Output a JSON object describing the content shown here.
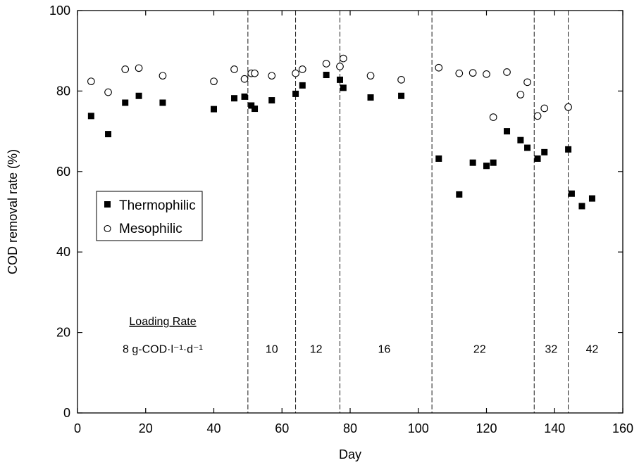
{
  "chart_data": {
    "type": "scatter",
    "title": "",
    "xlabel": "Day",
    "ylabel": "COD removal rate (%)",
    "xlim": [
      0,
      160
    ],
    "ylim": [
      0,
      100
    ],
    "xticks": [
      0,
      20,
      40,
      60,
      80,
      100,
      120,
      140,
      160
    ],
    "yticks": [
      0,
      20,
      40,
      60,
      80,
      100
    ],
    "grid": false,
    "legend_position": "middle-left",
    "series": [
      {
        "name": "Thermophilic",
        "marker": "filled-square",
        "color": "#000000",
        "points": [
          [
            4,
            73.8
          ],
          [
            9,
            69.3
          ],
          [
            14,
            77.1
          ],
          [
            18,
            78.8
          ],
          [
            25,
            77.1
          ],
          [
            40,
            75.5
          ],
          [
            46,
            78.2
          ],
          [
            49,
            78.6
          ],
          [
            51,
            76.4
          ],
          [
            52,
            75.6
          ],
          [
            57,
            77.7
          ],
          [
            64,
            79.3
          ],
          [
            66,
            81.4
          ],
          [
            73,
            84.0
          ],
          [
            77,
            82.8
          ],
          [
            78,
            80.8
          ],
          [
            86,
            78.4
          ],
          [
            95,
            78.8
          ],
          [
            106,
            63.2
          ],
          [
            112,
            54.3
          ],
          [
            116,
            62.2
          ],
          [
            120,
            61.4
          ],
          [
            122,
            62.2
          ],
          [
            126,
            70.0
          ],
          [
            130,
            67.8
          ],
          [
            132,
            65.9
          ],
          [
            135,
            63.2
          ],
          [
            137,
            64.8
          ],
          [
            144,
            65.5
          ],
          [
            145,
            54.5
          ],
          [
            148,
            51.4
          ],
          [
            151,
            53.3
          ]
        ]
      },
      {
        "name": "Mesophilic",
        "marker": "open-circle",
        "color": "#000000",
        "points": [
          [
            4,
            82.4
          ],
          [
            9,
            79.7
          ],
          [
            14,
            85.4
          ],
          [
            18,
            85.7
          ],
          [
            25,
            83.8
          ],
          [
            40,
            82.4
          ],
          [
            46,
            85.4
          ],
          [
            49,
            83.0
          ],
          [
            51,
            84.4
          ],
          [
            52,
            84.4
          ],
          [
            57,
            83.8
          ],
          [
            64,
            84.4
          ],
          [
            66,
            85.4
          ],
          [
            73,
            86.8
          ],
          [
            77,
            86.1
          ],
          [
            78,
            88.1
          ],
          [
            86,
            83.8
          ],
          [
            95,
            82.8
          ],
          [
            106,
            85.8
          ],
          [
            112,
            84.4
          ],
          [
            116,
            84.5
          ],
          [
            120,
            84.2
          ],
          [
            122,
            73.5
          ],
          [
            126,
            84.7
          ],
          [
            130,
            79.1
          ],
          [
            132,
            82.2
          ],
          [
            135,
            73.8
          ],
          [
            137,
            75.7
          ],
          [
            144,
            76.0
          ]
        ]
      }
    ],
    "phase_boundaries_day": [
      50,
      64,
      77,
      104,
      134,
      144
    ],
    "annotations": {
      "heading": "Loading Rate",
      "phases": [
        {
          "label": "8 g-COD·l⁻¹·d⁻¹",
          "day": 25
        },
        {
          "label": "10",
          "day": 57
        },
        {
          "label": "12",
          "day": 70
        },
        {
          "label": "16",
          "day": 90
        },
        {
          "label": "22",
          "day": 118
        },
        {
          "label": "32",
          "day": 139
        },
        {
          "label": "42",
          "day": 151
        }
      ],
      "phase_label_y": 16
    }
  }
}
